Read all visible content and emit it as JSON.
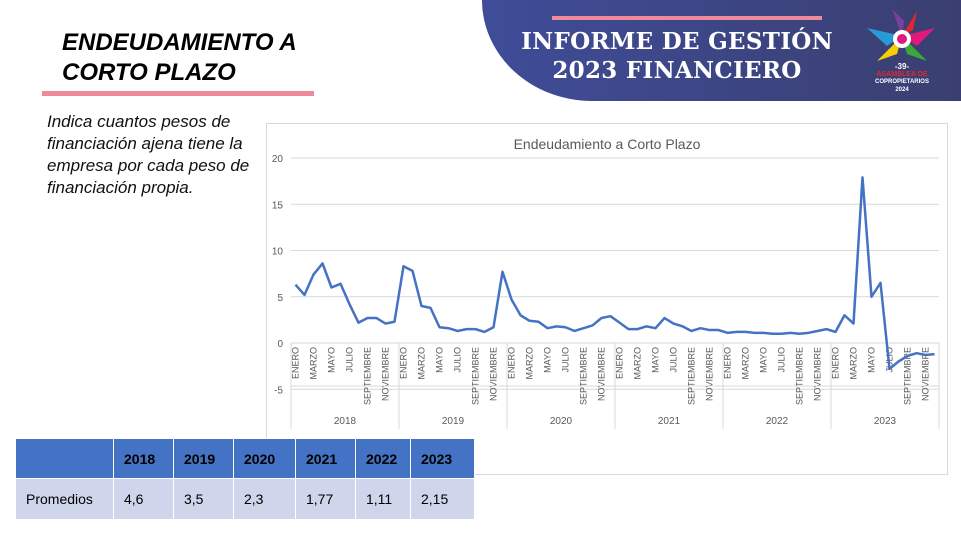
{
  "header": {
    "title_line1": "INFORME DE GESTIÓN",
    "title_line2": "2023 FINANCIERO",
    "logo_number": "-39-",
    "logo_line1": "ASAMBLEA DE",
    "logo_line2": "COPROPIETARIOS",
    "logo_year": "2024"
  },
  "page": {
    "title_line1": "ENDEUDAMIENTO A",
    "title_line2": "CORTO PLAZO",
    "description": "Indica cuantos pesos de financiación ajena tiene la empresa por cada peso de financiación propia."
  },
  "colors": {
    "accent": "#ee8a9c",
    "banner": "#3f4c98",
    "line": "#4472c4",
    "table_header": "#4472c4",
    "table_body": "#cfd5ea"
  },
  "chart_data": {
    "type": "line",
    "title": "Endeudamiento a Corto Plazo",
    "ylim": [
      -5,
      20
    ],
    "yticks": [
      "20",
      "15",
      "10",
      "5",
      "0",
      "-5"
    ],
    "ytick_values": [
      20,
      15,
      10,
      5,
      0,
      -5
    ],
    "years": [
      "2018",
      "2019",
      "2020",
      "2021",
      "2022",
      "2023"
    ],
    "month_labels": [
      "ENERO",
      "MARZO",
      "MAYO",
      "JULIO",
      "SEPTIEMBRE",
      "NOVIEMBRE"
    ],
    "grid": true,
    "series": [
      {
        "name": "Endeudamiento a Corto Plazo",
        "values": [
          6.3,
          5.2,
          7.4,
          8.6,
          6.0,
          6.4,
          4.2,
          2.2,
          2.7,
          2.7,
          2.1,
          2.3,
          8.3,
          7.8,
          4.0,
          3.8,
          1.7,
          1.6,
          1.3,
          1.5,
          1.5,
          1.2,
          1.7,
          7.7,
          4.7,
          3.0,
          2.4,
          2.3,
          1.6,
          1.8,
          1.7,
          1.3,
          1.6,
          1.9,
          2.7,
          2.9,
          2.2,
          1.5,
          1.5,
          1.8,
          1.6,
          2.7,
          2.1,
          1.8,
          1.3,
          1.6,
          1.4,
          1.4,
          1.1,
          1.2,
          1.2,
          1.1,
          1.1,
          1.0,
          1.0,
          1.1,
          1.0,
          1.1,
          1.3,
          1.5,
          1.2,
          3.0,
          2.1,
          17.9,
          5.0,
          6.5,
          -2.8,
          -2.0,
          -1.4,
          -1.1,
          -1.3,
          -1.2
        ]
      }
    ]
  },
  "table": {
    "headers": [
      "",
      "2018",
      "2019",
      "2020",
      "2021",
      "2022",
      "2023"
    ],
    "row": [
      "Promedios",
      "4,6",
      "3,5",
      "2,3",
      "1,77",
      "1,11",
      "2,15"
    ]
  }
}
